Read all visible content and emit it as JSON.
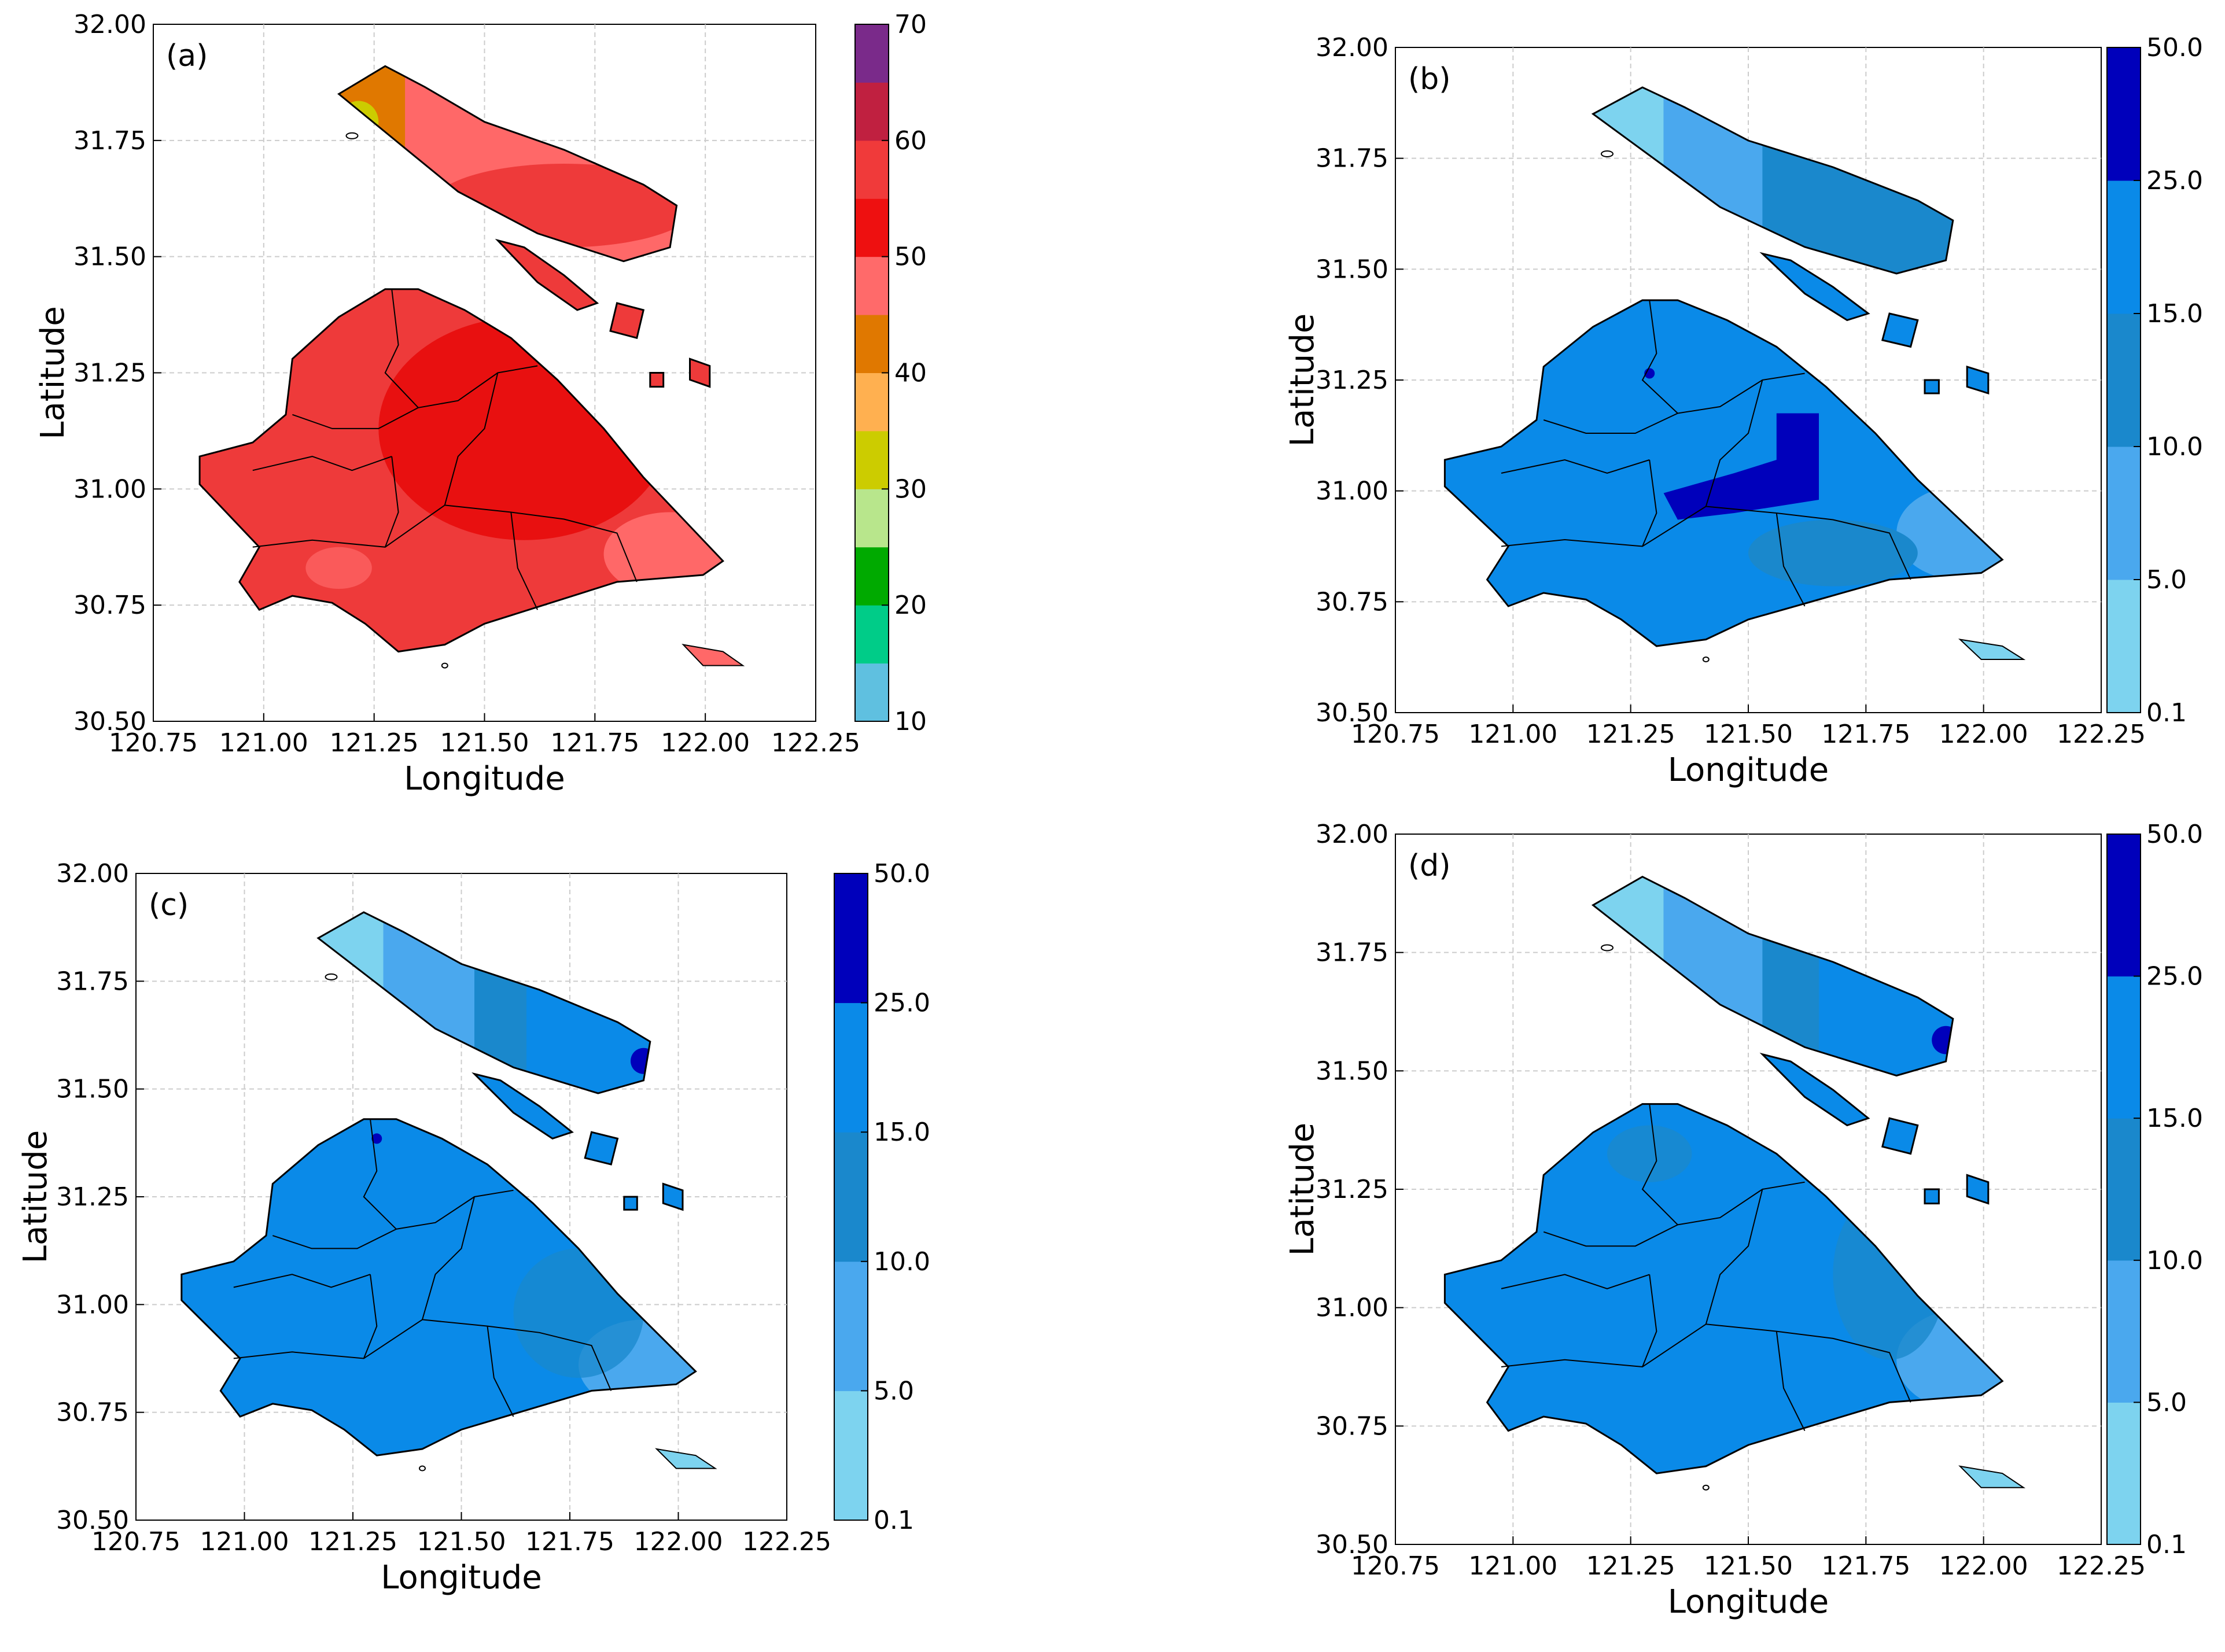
{
  "figure": {
    "panels": [
      {
        "id": "a",
        "label": "(a)",
        "xlabel": "Longitude",
        "ylabel": "Latitude",
        "xticks": [
          "120.75",
          "121.00",
          "121.25",
          "121.50",
          "121.75",
          "122.00",
          "122.25"
        ],
        "yticks": [
          "32.00",
          "31.75",
          "31.50",
          "31.25",
          "31.00",
          "30.75",
          "30.50"
        ],
        "colorbar": {
          "levels": [
            "10",
            "20",
            "30",
            "40",
            "50",
            "60",
            "70"
          ],
          "colors": [
            "#5fc0e0",
            "#00cc88",
            "#00aa00",
            "#b8e68c",
            "#cccc00",
            "#ffb050",
            "#e07800",
            "#ff6a6a",
            "#ee1010",
            "#f03a3a",
            "#c02040",
            "#7a2a8a"
          ]
        },
        "palette": {
          "base": "#ee3a3a",
          "core": "#e81010",
          "edge": "#ff6868",
          "north1": "#e07800",
          "north2": "#cccc00",
          "north3": "#b8e68c"
        }
      },
      {
        "id": "b",
        "label": "(b)",
        "xlabel": "Longitude",
        "ylabel": "Latitude",
        "xticks": [
          "120.75",
          "121.00",
          "121.25",
          "121.50",
          "121.75",
          "122.00",
          "122.25"
        ],
        "yticks": [
          "32.00",
          "31.75",
          "31.50",
          "31.25",
          "31.00",
          "30.75",
          "30.50"
        ],
        "colorbar": {
          "levels": [
            "0.1",
            "5.0",
            "10.0",
            "15.0",
            "25.0",
            "50.0"
          ],
          "colors": [
            "#7dd3ef",
            "#4aa8ee",
            "#1a88cc",
            "#0a8ae8",
            "#0000bb"
          ]
        },
        "palette": {
          "base": "#0a8ae8",
          "mid": "#1a88cc",
          "light": "#4aa8ee",
          "pale": "#7dd3ef",
          "dark": "#0000bb"
        }
      },
      {
        "id": "c",
        "label": "(c)",
        "xlabel": "Longitude",
        "ylabel": "Latitude",
        "xticks": [
          "120.75",
          "121.00",
          "121.25",
          "121.50",
          "121.75",
          "122.00",
          "122.25"
        ],
        "yticks": [
          "32.00",
          "31.75",
          "31.50",
          "31.25",
          "31.00",
          "30.75",
          "30.50"
        ],
        "colorbar": {
          "levels": [
            "0.1",
            "5.0",
            "10.0",
            "15.0",
            "25.0",
            "50.0"
          ],
          "colors": [
            "#7dd3ef",
            "#4aa8ee",
            "#1a88cc",
            "#0a8ae8",
            "#0000bb"
          ]
        },
        "palette": {
          "base": "#0a8ae8",
          "mid": "#1a88cc",
          "light": "#4aa8ee",
          "pale": "#7dd3ef",
          "dark": "#0000bb"
        }
      },
      {
        "id": "d",
        "label": "(d)",
        "xlabel": "Longitude",
        "ylabel": "Latitude",
        "xticks": [
          "120.75",
          "121.00",
          "121.25",
          "121.50",
          "121.75",
          "122.00",
          "122.25"
        ],
        "yticks": [
          "32.00",
          "31.75",
          "31.50",
          "31.25",
          "31.00",
          "30.75",
          "30.50"
        ],
        "colorbar": {
          "levels": [
            "0.1",
            "5.0",
            "10.0",
            "15.0",
            "25.0",
            "50.0"
          ],
          "colors": [
            "#7dd3ef",
            "#4aa8ee",
            "#1a88cc",
            "#0a8ae8",
            "#0000bb"
          ]
        },
        "palette": {
          "base": "#0a8ae8",
          "mid": "#1a88cc",
          "light": "#4aa8ee",
          "pale": "#7dd3ef",
          "dark": "#0000bb"
        }
      }
    ]
  }
}
